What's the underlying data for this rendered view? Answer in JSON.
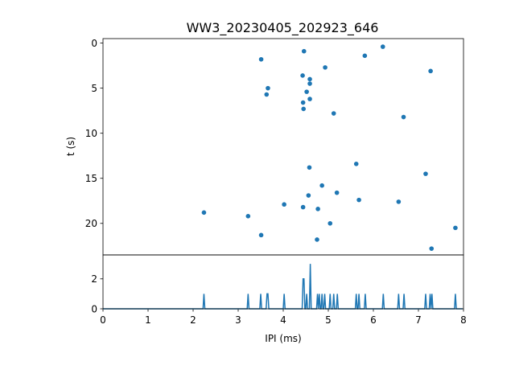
{
  "chart_data": [
    {
      "type": "scatter",
      "title": "WW3_20230405_202923_646",
      "xlabel": "",
      "ylabel": "t (s)",
      "xlim": [
        0,
        8
      ],
      "ylim": [
        23.5,
        -0.5
      ],
      "y_inverted": true,
      "y_ticks": [
        0,
        5,
        10,
        15,
        20
      ],
      "grid": false,
      "color": "#1f77b4",
      "points": [
        {
          "x": 6.21,
          "y": 0.4
        },
        {
          "x": 4.46,
          "y": 0.9
        },
        {
          "x": 5.81,
          "y": 1.4
        },
        {
          "x": 3.51,
          "y": 1.8
        },
        {
          "x": 4.93,
          "y": 2.7
        },
        {
          "x": 7.27,
          "y": 3.1
        },
        {
          "x": 4.43,
          "y": 3.6
        },
        {
          "x": 4.59,
          "y": 4.0
        },
        {
          "x": 4.59,
          "y": 4.5
        },
        {
          "x": 3.66,
          "y": 5.0
        },
        {
          "x": 4.52,
          "y": 5.4
        },
        {
          "x": 3.63,
          "y": 5.7
        },
        {
          "x": 4.59,
          "y": 6.2
        },
        {
          "x": 4.44,
          "y": 6.6
        },
        {
          "x": 4.45,
          "y": 7.3
        },
        {
          "x": 5.12,
          "y": 7.8
        },
        {
          "x": 6.67,
          "y": 8.2
        },
        {
          "x": 5.62,
          "y": 13.4
        },
        {
          "x": 4.58,
          "y": 13.8
        },
        {
          "x": 7.16,
          "y": 14.5
        },
        {
          "x": 4.86,
          "y": 15.8
        },
        {
          "x": 5.19,
          "y": 16.6
        },
        {
          "x": 4.56,
          "y": 16.9
        },
        {
          "x": 5.68,
          "y": 17.4
        },
        {
          "x": 6.56,
          "y": 17.6
        },
        {
          "x": 4.02,
          "y": 17.9
        },
        {
          "x": 4.44,
          "y": 18.2
        },
        {
          "x": 4.77,
          "y": 18.4
        },
        {
          "x": 2.24,
          "y": 18.8
        },
        {
          "x": 3.22,
          "y": 19.2
        },
        {
          "x": 5.04,
          "y": 20.0
        },
        {
          "x": 7.82,
          "y": 20.5
        },
        {
          "x": 3.51,
          "y": 21.3
        },
        {
          "x": 4.75,
          "y": 21.8
        },
        {
          "x": 7.29,
          "y": 22.8
        }
      ]
    },
    {
      "type": "line",
      "title": "",
      "xlabel": "IPI (ms)",
      "ylabel": "",
      "xlim": [
        0,
        8
      ],
      "ylim": [
        0,
        3.6
      ],
      "x_ticks": [
        0,
        1,
        2,
        3,
        4,
        5,
        6,
        7,
        8
      ],
      "y_ticks": [
        0,
        2
      ],
      "grid": false,
      "color": "#1f77b4",
      "bin_width": 0.02,
      "peaks": [
        {
          "x": 2.24,
          "count": 1
        },
        {
          "x": 3.22,
          "count": 1
        },
        {
          "x": 3.51,
          "count": 1
        },
        {
          "x": 3.63,
          "count": 1
        },
        {
          "x": 3.66,
          "count": 1
        },
        {
          "x": 4.02,
          "count": 1
        },
        {
          "x": 4.44,
          "count": 2
        },
        {
          "x": 4.46,
          "count": 2
        },
        {
          "x": 4.52,
          "count": 1
        },
        {
          "x": 4.59,
          "count": 3
        },
        {
          "x": 4.75,
          "count": 1
        },
        {
          "x": 4.8,
          "count": 1
        },
        {
          "x": 4.86,
          "count": 1
        },
        {
          "x": 4.93,
          "count": 1
        },
        {
          "x": 5.04,
          "count": 1
        },
        {
          "x": 5.12,
          "count": 1
        },
        {
          "x": 5.19,
          "count": 1
        },
        {
          "x": 5.62,
          "count": 1
        },
        {
          "x": 5.68,
          "count": 1
        },
        {
          "x": 5.81,
          "count": 1
        },
        {
          "x": 6.21,
          "count": 1
        },
        {
          "x": 6.56,
          "count": 1
        },
        {
          "x": 6.67,
          "count": 1
        },
        {
          "x": 7.16,
          "count": 1
        },
        {
          "x": 7.27,
          "count": 1
        },
        {
          "x": 7.29,
          "count": 1
        },
        {
          "x": 7.82,
          "count": 1
        }
      ]
    }
  ]
}
